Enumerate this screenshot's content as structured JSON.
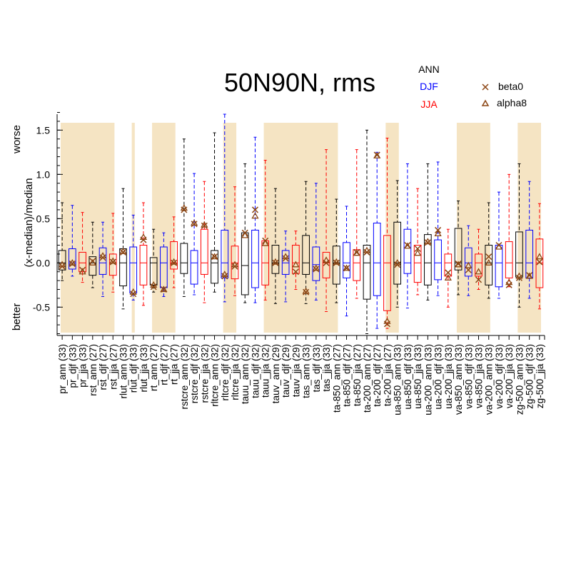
{
  "chart_data": {
    "type": "boxplot",
    "title": "50N90N, rms",
    "ylabel": "(x-median)/median",
    "y_better_label": "better",
    "y_worse_label": "worse",
    "ylim": [
      -0.82,
      1.68
    ],
    "yticks": [
      -0.5,
      0.0,
      0.5,
      1.0,
      1.5
    ],
    "ytick_labels": [
      "-0.5",
      "0.0",
      "0.5",
      "1.0",
      "1.5"
    ],
    "season_legend": [
      {
        "label": "ANN",
        "color": "#000000"
      },
      {
        "label": "DJF",
        "color": "#0000ff"
      },
      {
        "label": "JJA",
        "color": "#ff0000"
      }
    ],
    "model_legend": [
      {
        "label": "beta0",
        "marker": "x",
        "color": "#8b4513"
      },
      {
        "label": "alpha8",
        "marker": "triangle",
        "color": "#8b4513"
      }
    ],
    "shade_color": "#f5e4c3",
    "shaded_ranges": [
      [
        0,
        5
      ],
      [
        7,
        7
      ],
      [
        9,
        11
      ],
      [
        16,
        17
      ],
      [
        20,
        27
      ],
      [
        32,
        33
      ],
      [
        39,
        42
      ],
      [
        45,
        47
      ]
    ],
    "categories": [
      "pr_ann (33)",
      "pr_djf (33)",
      "pr_jja (33)",
      "rst_ann (27)",
      "rst_djf (27)",
      "rst_jja (27)",
      "rlut_ann (33)",
      "rlut_djf (33)",
      "rlut_jja (33)",
      "rt_ann (27)",
      "rt_djf (27)",
      "rt_jja (27)",
      "rstcre_ann (32)",
      "rstcre_djf (32)",
      "rstcre_jja (32)",
      "rltcre_ann (32)",
      "rltcre_djf (32)",
      "rltcre_jja (32)",
      "tauu_ann (32)",
      "tauu_djf (32)",
      "tauu_jja (32)",
      "tauv_ann (29)",
      "tauv_djf (29)",
      "tauv_jja (29)",
      "tas_ann (33)",
      "tas_djf (33)",
      "tas_jja (33)",
      "ta-850_ann (27)",
      "ta-850_djf (27)",
      "ta-850_jja (27)",
      "ta-200_ann (27)",
      "ta-200_djf (27)",
      "ta-200_jja (27)",
      "ua-850_ann (33)",
      "ua-850_djf (33)",
      "ua-850_jja (33)",
      "ua-200_ann (33)",
      "ua-200_djf (33)",
      "ua-200_jja (33)",
      "va-850_ann (33)",
      "va-850_djf (33)",
      "va-850_jja (33)",
      "va-200_ann (33)",
      "va-200_djf (33)",
      "va-200_jja (33)",
      "zg-500_ann (33)",
      "zg-500_djf (33)",
      "zg-500_jja (33)"
    ],
    "boxes": [
      {
        "season": "ann",
        "whislo": -0.2,
        "q1": -0.08,
        "med": 0,
        "q3": 0.14,
        "whishi": 0.68,
        "beta0": -0.04,
        "alpha8": -0.02
      },
      {
        "season": "djf",
        "whislo": -0.15,
        "q1": -0.07,
        "med": 0,
        "q3": 0.16,
        "whishi": 0.65,
        "beta0": -0.01,
        "alpha8": 0.0
      },
      {
        "season": "jja",
        "whislo": -0.22,
        "q1": -0.1,
        "med": 0,
        "q3": 0.12,
        "whishi": 0.57,
        "beta0": -0.08,
        "alpha8": -0.1
      },
      {
        "season": "ann",
        "whislo": -0.28,
        "q1": -0.14,
        "med": 0,
        "q3": 0.07,
        "whishi": 0.46,
        "beta0": 0.02,
        "alpha8": 0.0
      },
      {
        "season": "djf",
        "whislo": -0.38,
        "q1": -0.13,
        "med": 0,
        "q3": 0.17,
        "whishi": 0.46,
        "beta0": 0.06,
        "alpha8": 0.08
      },
      {
        "season": "jja",
        "whislo": -0.33,
        "q1": -0.14,
        "med": 0,
        "q3": 0.1,
        "whishi": 0.56,
        "beta0": 0.01,
        "alpha8": 0.02
      },
      {
        "season": "ann",
        "whislo": -0.52,
        "q1": -0.26,
        "med": 0,
        "q3": 0.16,
        "whishi": 0.84,
        "beta0": 0.12,
        "alpha8": 0.13
      },
      {
        "season": "djf",
        "whislo": -0.42,
        "q1": -0.34,
        "med": 0,
        "q3": 0.18,
        "whishi": 0.54,
        "beta0": -0.35,
        "alpha8": -0.33
      },
      {
        "season": "jja",
        "whislo": -0.48,
        "q1": -0.25,
        "med": 0,
        "q3": 0.2,
        "whishi": 0.68,
        "beta0": 0.26,
        "alpha8": 0.29
      },
      {
        "season": "ann",
        "whislo": -0.33,
        "q1": -0.25,
        "med": 0,
        "q3": 0.06,
        "whishi": 0.38,
        "beta0": -0.27,
        "alpha8": -0.25
      },
      {
        "season": "djf",
        "whislo": -0.38,
        "q1": -0.28,
        "med": 0,
        "q3": 0.18,
        "whishi": 0.34,
        "beta0": -0.3,
        "alpha8": -0.3
      },
      {
        "season": "jja",
        "whislo": -0.28,
        "q1": -0.07,
        "med": 0,
        "q3": 0.24,
        "whishi": 0.52,
        "beta0": 0.0,
        "alpha8": 0.01
      },
      {
        "season": "ann",
        "whislo": -0.38,
        "q1": -0.12,
        "med": 0,
        "q3": 0.22,
        "whishi": 1.4,
        "beta0": 0.6,
        "alpha8": 0.62
      },
      {
        "season": "djf",
        "whislo": -0.36,
        "q1": -0.24,
        "med": 0,
        "q3": 0.14,
        "whishi": 1.01,
        "beta0": 0.44,
        "alpha8": 0.45
      },
      {
        "season": "jja",
        "whislo": -0.45,
        "q1": -0.13,
        "med": 0,
        "q3": 0.38,
        "whishi": 0.92,
        "beta0": 0.42,
        "alpha8": 0.43
      },
      {
        "season": "ann",
        "whislo": -0.33,
        "q1": -0.23,
        "med": 0,
        "q3": 0.14,
        "whishi": 1.47,
        "beta0": 0.07,
        "alpha8": 0.07
      },
      {
        "season": "djf",
        "whislo": -0.44,
        "q1": -0.17,
        "med": 0,
        "q3": 0.37,
        "whishi": 1.68,
        "beta0": -0.15,
        "alpha8": -0.13
      },
      {
        "season": "jja",
        "whislo": -0.37,
        "q1": -0.18,
        "med": 0,
        "q3": 0.19,
        "whishi": 0.86,
        "beta0": -0.04,
        "alpha8": -0.02
      },
      {
        "season": "ann",
        "whislo": -0.45,
        "q1": -0.36,
        "med": -0.03,
        "q3": 0.34,
        "whishi": 1.12,
        "beta0": 0.34,
        "alpha8": 0.31
      },
      {
        "season": "djf",
        "whislo": -0.45,
        "q1": -0.28,
        "med": 0,
        "q3": 0.37,
        "whishi": 1.42,
        "beta0": 0.6,
        "alpha8": 0.53
      },
      {
        "season": "jja",
        "whislo": -0.42,
        "q1": -0.25,
        "med": 0,
        "q3": 0.25,
        "whishi": 1.16,
        "beta0": 0.25,
        "alpha8": 0.22
      },
      {
        "season": "ann",
        "whislo": -0.46,
        "q1": -0.12,
        "med": 0,
        "q3": 0.2,
        "whishi": 0.84,
        "beta0": 0.0,
        "alpha8": 0.01
      },
      {
        "season": "djf",
        "whislo": -0.44,
        "q1": -0.13,
        "med": 0,
        "q3": 0.14,
        "whishi": 0.36,
        "beta0": 0.05,
        "alpha8": 0.07
      },
      {
        "season": "jja",
        "whislo": -0.3,
        "q1": -0.12,
        "med": 0,
        "q3": 0.2,
        "whishi": 0.36,
        "beta0": -0.1,
        "alpha8": -0.02
      },
      {
        "season": "ann",
        "whislo": -0.46,
        "q1": -0.13,
        "med": 0,
        "q3": 0.31,
        "whishi": 0.92,
        "beta0": -0.33,
        "alpha8": -0.32
      },
      {
        "season": "djf",
        "whislo": -0.42,
        "q1": -0.2,
        "med": -0.02,
        "q3": 0.18,
        "whishi": 0.9,
        "beta0": -0.07,
        "alpha8": -0.06
      },
      {
        "season": "jja",
        "whislo": -0.55,
        "q1": -0.17,
        "med": 0,
        "q3": 0.12,
        "whishi": 1.28,
        "beta0": 0.0,
        "alpha8": 0.03
      },
      {
        "season": "ann",
        "whislo": -0.45,
        "q1": -0.24,
        "med": 0,
        "q3": 0.19,
        "whishi": 0.72,
        "beta0": 0.0,
        "alpha8": 0.01
      },
      {
        "season": "djf",
        "whislo": -0.6,
        "q1": -0.17,
        "med": 0,
        "q3": 0.23,
        "whishi": 0.64,
        "beta0": -0.06,
        "alpha8": -0.06
      },
      {
        "season": "jja",
        "whislo": -0.4,
        "q1": -0.2,
        "med": 0,
        "q3": 0.15,
        "whishi": 1.28,
        "beta0": 0.12,
        "alpha8": 0.11
      },
      {
        "season": "ann",
        "whislo": -0.8,
        "q1": -0.41,
        "med": 0,
        "q3": 0.2,
        "whishi": 1.5,
        "beta0": 0.12,
        "alpha8": 0.14
      },
      {
        "season": "djf",
        "whislo": -0.74,
        "q1": -0.37,
        "med": 0,
        "q3": 0.45,
        "whishi": 1.25,
        "beta0": 1.22,
        "alpha8": 1.21
      },
      {
        "season": "jja",
        "whislo": -0.74,
        "q1": -0.54,
        "med": 0,
        "q3": 0.31,
        "whishi": 1.41,
        "beta0": -0.69,
        "alpha8": -0.66
      },
      {
        "season": "ann",
        "whislo": -0.5,
        "q1": -0.24,
        "med": 0,
        "q3": 0.46,
        "whishi": 0.93,
        "beta0": -0.02,
        "alpha8": 0.0
      },
      {
        "season": "djf",
        "whislo": -0.51,
        "q1": -0.12,
        "med": 0,
        "q3": 0.38,
        "whishi": 1.12,
        "beta0": 0.2,
        "alpha8": 0.19
      },
      {
        "season": "jja",
        "whislo": -0.36,
        "q1": -0.22,
        "med": 0,
        "q3": 0.2,
        "whishi": 0.84,
        "beta0": 0.16,
        "alpha8": 0.11
      },
      {
        "season": "ann",
        "whislo": -0.42,
        "q1": -0.25,
        "med": 0,
        "q3": 0.32,
        "whishi": 1.12,
        "beta0": 0.23,
        "alpha8": 0.24
      },
      {
        "season": "djf",
        "whislo": -0.37,
        "q1": -0.19,
        "med": 0,
        "q3": 0.26,
        "whishi": 1.14,
        "beta0": 0.37,
        "alpha8": 0.33
      },
      {
        "season": "jja",
        "whislo": -0.5,
        "q1": -0.15,
        "med": 0,
        "q3": 0.1,
        "whishi": 0.38,
        "beta0": -0.11,
        "alpha8": -0.17
      },
      {
        "season": "ann",
        "whislo": -0.36,
        "q1": -0.08,
        "med": 0,
        "q3": 0.39,
        "whishi": 0.7,
        "beta0": -0.01,
        "alpha8": -0.02
      },
      {
        "season": "djf",
        "whislo": -0.37,
        "q1": -0.15,
        "med": 0,
        "q3": 0.17,
        "whishi": 0.42,
        "beta0": -0.08,
        "alpha8": -0.03
      },
      {
        "season": "jja",
        "whislo": -0.3,
        "q1": -0.15,
        "med": 0,
        "q3": 0.1,
        "whishi": 0.38,
        "beta0": -0.19,
        "alpha8": -0.1
      },
      {
        "season": "ann",
        "whislo": -0.4,
        "q1": -0.25,
        "med": 0,
        "q3": 0.2,
        "whishi": 0.68,
        "beta0": 0.07,
        "alpha8": 0.0
      },
      {
        "season": "djf",
        "whislo": -0.4,
        "q1": -0.27,
        "med": 0,
        "q3": 0.2,
        "whishi": 0.8,
        "beta0": 0.2,
        "alpha8": 0.18
      },
      {
        "season": "jja",
        "whislo": -0.27,
        "q1": -0.17,
        "med": 0,
        "q3": 0.24,
        "whishi": 1.0,
        "beta0": -0.25,
        "alpha8": -0.22
      },
      {
        "season": "ann",
        "whislo": -0.5,
        "q1": -0.16,
        "med": 0,
        "q3": 0.35,
        "whishi": 1.12,
        "beta0": -0.17,
        "alpha8": -0.15
      },
      {
        "season": "djf",
        "whislo": -0.4,
        "q1": -0.17,
        "med": 0,
        "q3": 0.37,
        "whishi": 0.92,
        "beta0": -0.14,
        "alpha8": -0.15
      },
      {
        "season": "jja",
        "whislo": -0.52,
        "q1": -0.28,
        "med": 0,
        "q3": 0.27,
        "whishi": 0.67,
        "beta0": 0.01,
        "alpha8": 0.07
      }
    ]
  }
}
